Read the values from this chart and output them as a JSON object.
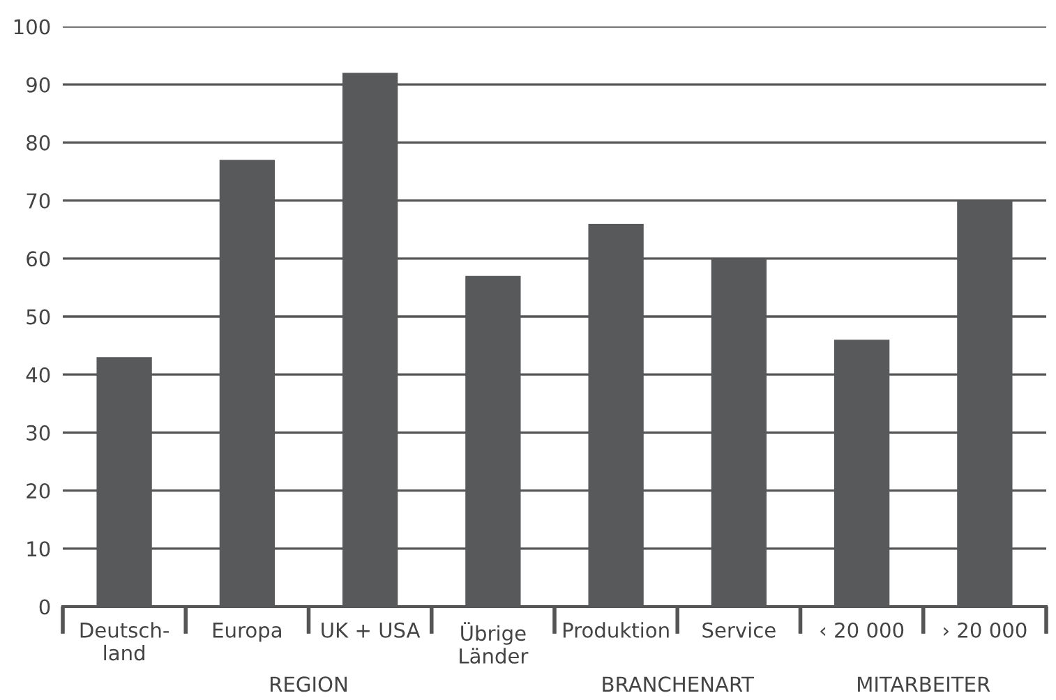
{
  "chart_data": {
    "type": "bar",
    "categories": [
      "Deutsch-\nland",
      "Europa",
      "UK + USA",
      "Übrige\nLänder",
      "Produktion",
      "Service",
      "‹ 20 000",
      "› 20 000"
    ],
    "values": [
      43,
      77,
      92,
      57,
      66,
      60,
      46,
      70
    ],
    "color": "#58595b",
    "ylim": [
      0,
      100
    ],
    "yticks": [
      0,
      10,
      20,
      30,
      40,
      50,
      60,
      70,
      80,
      90,
      100
    ],
    "grid": "y",
    "annotations": [
      "REGION",
      "BRANCHENART",
      "MITARBEITER"
    ]
  }
}
